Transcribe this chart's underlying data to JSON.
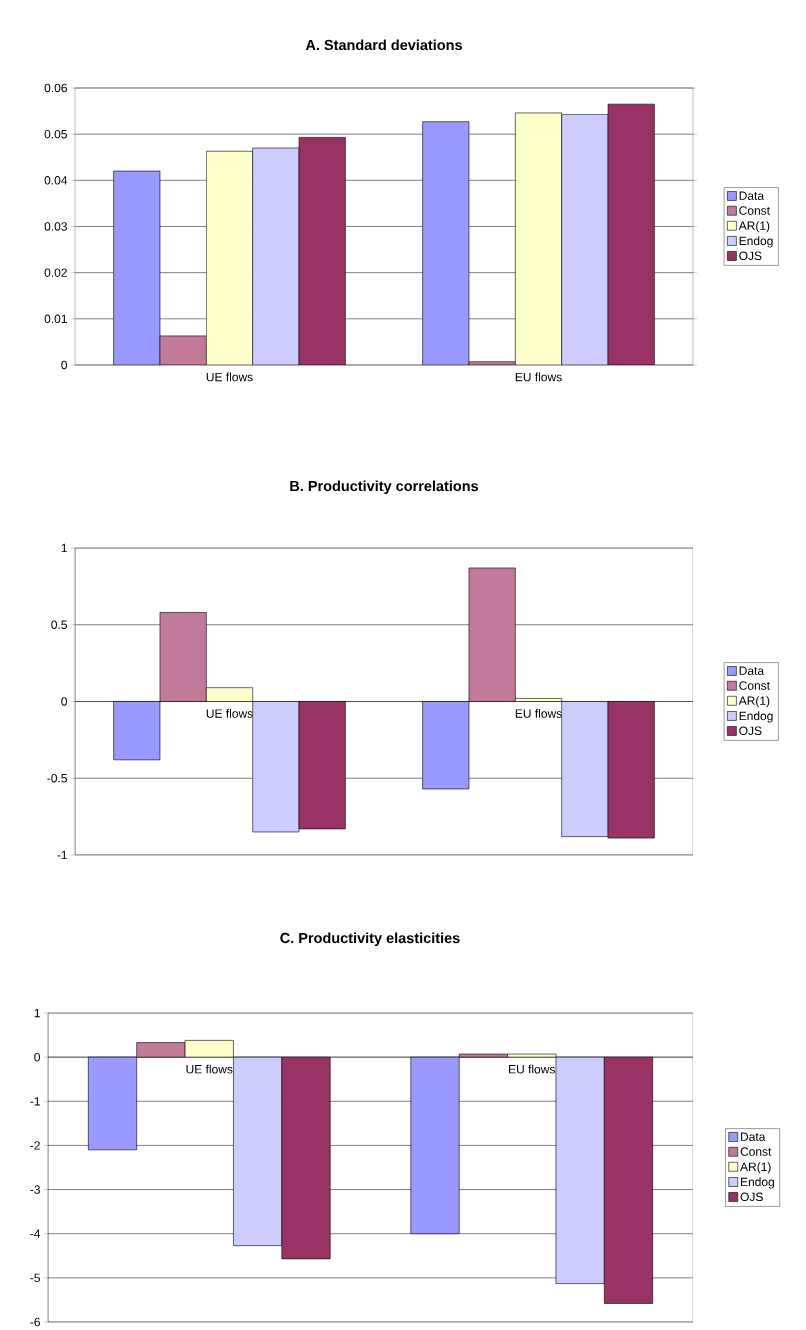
{
  "chart_data": [
    {
      "type": "bar",
      "title": "A. Standard deviations",
      "categories": [
        "UE flows",
        "EU flows"
      ],
      "series": [
        {
          "name": "Data",
          "color": "#9999ff",
          "values": [
            0.042,
            0.0527
          ]
        },
        {
          "name": "Const",
          "color": "#c27a9a",
          "values": [
            0.0063,
            0.0007
          ]
        },
        {
          "name": "AR(1)",
          "color": "#ffffcc",
          "values": [
            0.0463,
            0.0546
          ]
        },
        {
          "name": "Endog",
          "color": "#ccccff",
          "values": [
            0.047,
            0.0543
          ]
        },
        {
          "name": "OJS",
          "color": "#993366",
          "values": [
            0.0493,
            0.0565
          ]
        }
      ],
      "ylim": [
        0,
        0.06
      ],
      "yticks": [
        0,
        0.01,
        0.02,
        0.03,
        0.04,
        0.05,
        0.06
      ],
      "grid": "y",
      "legend": "right"
    },
    {
      "type": "bar",
      "title": "B. Productivity correlations",
      "categories": [
        "UE flows",
        "EU flows"
      ],
      "series": [
        {
          "name": "Data",
          "color": "#9999ff",
          "values": [
            -0.38,
            -0.57
          ]
        },
        {
          "name": "Const",
          "color": "#c27a9a",
          "values": [
            0.58,
            0.87
          ]
        },
        {
          "name": "AR(1)",
          "color": "#ffffcc",
          "values": [
            0.09,
            0.02
          ]
        },
        {
          "name": "Endog",
          "color": "#ccccff",
          "values": [
            -0.85,
            -0.88
          ]
        },
        {
          "name": "OJS",
          "color": "#993366",
          "values": [
            -0.83,
            -0.89
          ]
        }
      ],
      "ylim": [
        -1,
        1
      ],
      "yticks": [
        -1,
        -0.5,
        0,
        0.5,
        1
      ],
      "grid": "y",
      "legend": "right"
    },
    {
      "type": "bar",
      "title": "C. Productivity elasticities",
      "categories": [
        "UE flows",
        "EU flows"
      ],
      "series": [
        {
          "name": "Data",
          "color": "#9999ff",
          "values": [
            -2.1,
            -4.0
          ]
        },
        {
          "name": "Const",
          "color": "#c27a9a",
          "values": [
            0.33,
            0.07
          ]
        },
        {
          "name": "AR(1)",
          "color": "#ffffcc",
          "values": [
            0.38,
            0.07
          ]
        },
        {
          "name": "Endog",
          "color": "#ccccff",
          "values": [
            -4.27,
            -5.13
          ]
        },
        {
          "name": "OJS",
          "color": "#993366",
          "values": [
            -4.57,
            -5.58
          ]
        }
      ],
      "ylim": [
        -6,
        1
      ],
      "yticks": [
        -6,
        -5,
        -4,
        -3,
        -2,
        -1,
        0,
        1
      ],
      "grid": "y",
      "legend": "right"
    }
  ]
}
